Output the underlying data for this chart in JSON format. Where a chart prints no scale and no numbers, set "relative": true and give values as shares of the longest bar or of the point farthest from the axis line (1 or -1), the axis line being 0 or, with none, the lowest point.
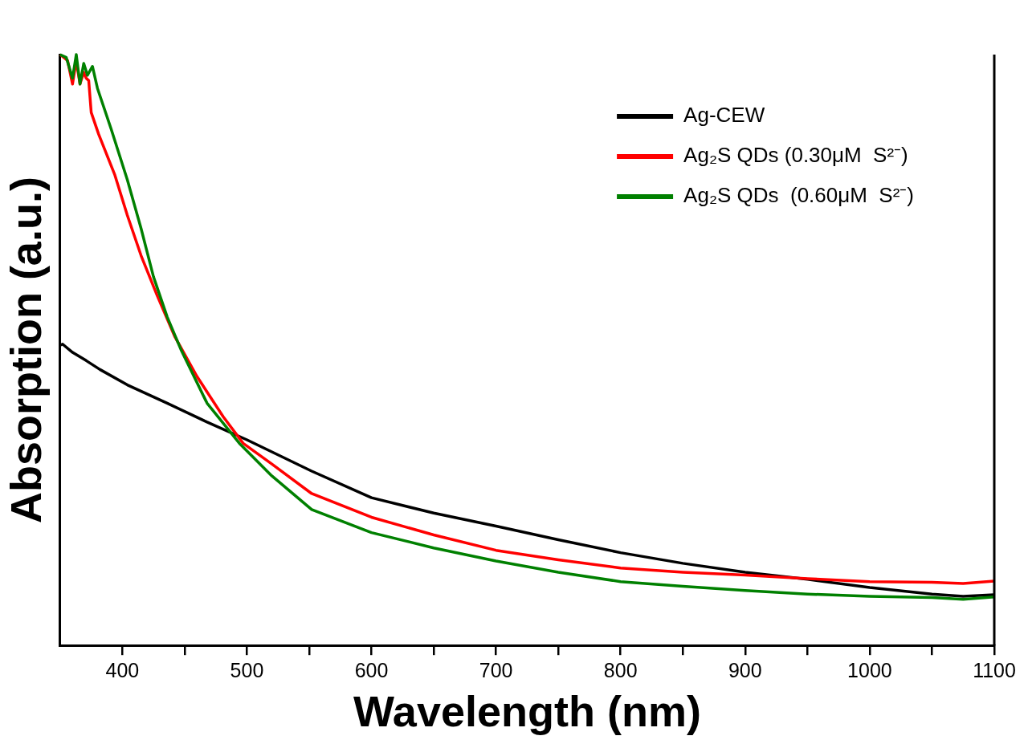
{
  "chart_data": {
    "type": "line",
    "xlabel": "Wavelength (nm)",
    "ylabel": "Absorption (a.u.)",
    "relative": true,
    "xlim": [
      350,
      1100
    ],
    "xticks": [
      400,
      {
        "value": 450,
        "label": null
      },
      500,
      {
        "value": 550,
        "label": null
      },
      600,
      {
        "value": 650,
        "label": null
      },
      700,
      {
        "value": 750,
        "label": null
      },
      800,
      {
        "value": 850,
        "label": null
      },
      900,
      {
        "value": 950,
        "label": null
      },
      1000,
      {
        "value": 1050,
        "label": null
      },
      1100
    ],
    "legend": "top right",
    "marker": "none",
    "line_style": "solid",
    "grid": false,
    "series": [
      {
        "name": "Ag-CEW",
        "color": "#000000",
        "x": [
          350,
          352,
          360,
          371,
          382,
          404,
          436,
          468,
          500,
          552,
          600,
          650,
          700,
          750,
          800,
          850,
          900,
          950,
          1000,
          1050,
          1075,
          1100
        ],
        "values": [
          0.508,
          0.51,
          0.496,
          0.482,
          0.467,
          0.441,
          0.41,
          0.378,
          0.348,
          0.295,
          0.25,
          0.224,
          0.202,
          0.179,
          0.157,
          0.139,
          0.124,
          0.112,
          0.098,
          0.087,
          0.083,
          0.086
        ]
      },
      {
        "name": "Ag₂S QDs (0.30μM  S²⁻)",
        "color": "#ff0000",
        "x": [
          350,
          356,
          360,
          363,
          366,
          369,
          371,
          373,
          375,
          381,
          394,
          404,
          415,
          428,
          442,
          460,
          481,
          497,
          520,
          552,
          600,
          650,
          700,
          750,
          800,
          850,
          900,
          950,
          1000,
          1050,
          1075,
          1100
        ],
        "values": [
          1,
          0.99,
          0.95,
          0.99,
          0.95,
          0.97,
          0.96,
          0.956,
          0.902,
          0.865,
          0.796,
          0.728,
          0.66,
          0.592,
          0.523,
          0.455,
          0.387,
          0.342,
          0.307,
          0.257,
          0.217,
          0.187,
          0.161,
          0.145,
          0.131,
          0.124,
          0.119,
          0.113,
          0.108,
          0.107,
          0.105,
          0.109
        ]
      },
      {
        "name": "Ag₂S QDs  (0.60μM  S²⁻)",
        "color": "#008000",
        "x": [
          350,
          355,
          360,
          363,
          366,
          369,
          372,
          376,
          380,
          391,
          404,
          415,
          425,
          436,
          447,
          468,
          494,
          520,
          552,
          600,
          650,
          700,
          750,
          800,
          850,
          900,
          950,
          1000,
          1050,
          1075,
          1100
        ],
        "values": [
          1,
          0.995,
          0.96,
          1,
          0.95,
          0.985,
          0.965,
          0.98,
          0.943,
          0.874,
          0.788,
          0.706,
          0.624,
          0.556,
          0.501,
          0.41,
          0.342,
          0.287,
          0.23,
          0.191,
          0.165,
          0.143,
          0.124,
          0.108,
          0.1,
          0.093,
          0.087,
          0.083,
          0.081,
          0.078,
          0.082
        ]
      }
    ]
  }
}
